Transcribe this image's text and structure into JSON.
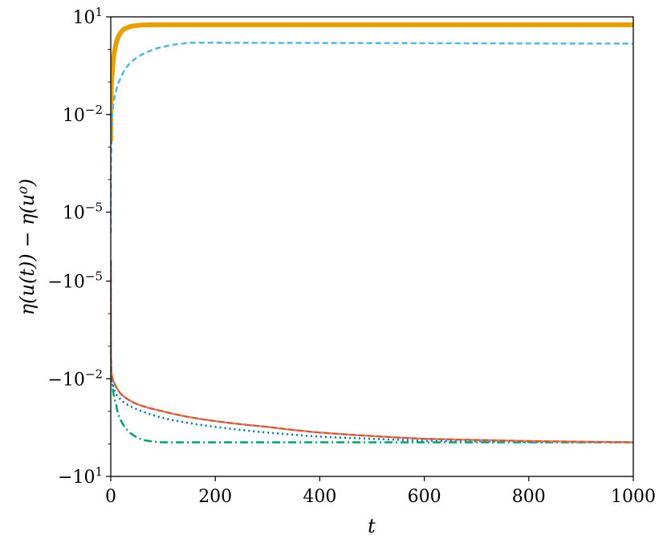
{
  "chart_data": {
    "type": "line",
    "xlabel": "t",
    "ylabel": "η(u(t)) − η(u⁰)",
    "xlim": [
      0,
      1000
    ],
    "yscale": "symlog",
    "grid": false,
    "legend": "none",
    "x_ticks": [
      {
        "value": 0,
        "label": "0"
      },
      {
        "value": 200,
        "label": "200"
      },
      {
        "value": 400,
        "label": "400"
      },
      {
        "value": 600,
        "label": "600"
      },
      {
        "value": 800,
        "label": "800"
      },
      {
        "value": 1000,
        "label": "1000"
      }
    ],
    "y_ticks": [
      {
        "base": "10",
        "exp": "1"
      },
      {
        "base": "10",
        "exp": "−2"
      },
      {
        "base": "10",
        "exp": "−5"
      },
      {
        "base": "−10",
        "exp": "−5"
      },
      {
        "base": "−10",
        "exp": "−2"
      },
      {
        "base": "−10",
        "exp": "1"
      }
    ],
    "series": [
      {
        "color": "#E69F00",
        "style": "solid",
        "width": 6,
        "points": [
          [
            0,
            0.0015
          ],
          [
            3,
            0.2
          ],
          [
            8,
            1.0
          ],
          [
            15,
            2.6
          ],
          [
            25,
            4.2
          ],
          [
            40,
            5.2
          ],
          [
            60,
            5.6
          ],
          [
            80,
            5.7
          ],
          [
            150,
            5.7
          ],
          [
            1000,
            5.7
          ]
        ]
      },
      {
        "color": "#56B4E9",
        "style": "dashed",
        "width": 2.5,
        "points": [
          [
            0,
            4e-06
          ],
          [
            1,
            0.0008
          ],
          [
            2,
            0.005
          ],
          [
            5,
            0.02
          ],
          [
            10,
            0.05
          ],
          [
            20,
            0.14
          ],
          [
            35,
            0.35
          ],
          [
            60,
            0.7
          ],
          [
            90,
            1.1
          ],
          [
            120,
            1.4
          ],
          [
            150,
            1.6
          ],
          [
            200,
            1.6
          ],
          [
            1000,
            1.5
          ]
        ]
      },
      {
        "color": "#0072B2",
        "style": "dotted",
        "width": 2.5,
        "points": [
          [
            0,
            -4e-06
          ],
          [
            1,
            -0.005
          ],
          [
            3,
            -0.013
          ],
          [
            10,
            -0.03
          ],
          [
            30,
            -0.06
          ],
          [
            60,
            -0.1
          ],
          [
            100,
            -0.16
          ],
          [
            200,
            -0.3
          ],
          [
            300,
            -0.45
          ],
          [
            400,
            -0.6
          ],
          [
            600,
            -0.8
          ],
          [
            800,
            -0.87
          ],
          [
            1000,
            -0.9
          ]
        ]
      },
      {
        "color": "#009E73",
        "style": "dashdot",
        "width": 2.5,
        "points": [
          [
            0,
            -4e-06
          ],
          [
            1,
            -0.005
          ],
          [
            3,
            -0.015
          ],
          [
            10,
            -0.06
          ],
          [
            20,
            -0.2
          ],
          [
            40,
            -0.5
          ],
          [
            60,
            -0.75
          ],
          [
            80,
            -0.85
          ],
          [
            100,
            -0.9
          ],
          [
            1000,
            -0.9
          ]
        ]
      },
      {
        "color": "#CC79A7",
        "style": "solid",
        "width": 2.5,
        "points": [
          [
            0,
            -4e-06
          ],
          [
            0.5,
            -0.004
          ],
          [
            2,
            -0.008
          ],
          [
            8,
            -0.015
          ],
          [
            20,
            -0.03
          ],
          [
            50,
            -0.06
          ],
          [
            100,
            -0.1
          ],
          [
            200,
            -0.2
          ],
          [
            300,
            -0.3
          ],
          [
            400,
            -0.45
          ],
          [
            600,
            -0.7
          ],
          [
            800,
            -0.82
          ],
          [
            1000,
            -0.9
          ]
        ]
      },
      {
        "color": "#D55E00",
        "style": "dashed",
        "width": 2,
        "points": [
          [
            0,
            -4e-06
          ],
          [
            0.5,
            -0.004
          ],
          [
            2,
            -0.008
          ],
          [
            8,
            -0.015
          ],
          [
            20,
            -0.03
          ],
          [
            50,
            -0.06
          ],
          [
            100,
            -0.1
          ],
          [
            200,
            -0.2
          ],
          [
            300,
            -0.3
          ],
          [
            400,
            -0.45
          ],
          [
            600,
            -0.7
          ],
          [
            800,
            -0.82
          ],
          [
            1000,
            -0.9
          ]
        ]
      }
    ]
  }
}
